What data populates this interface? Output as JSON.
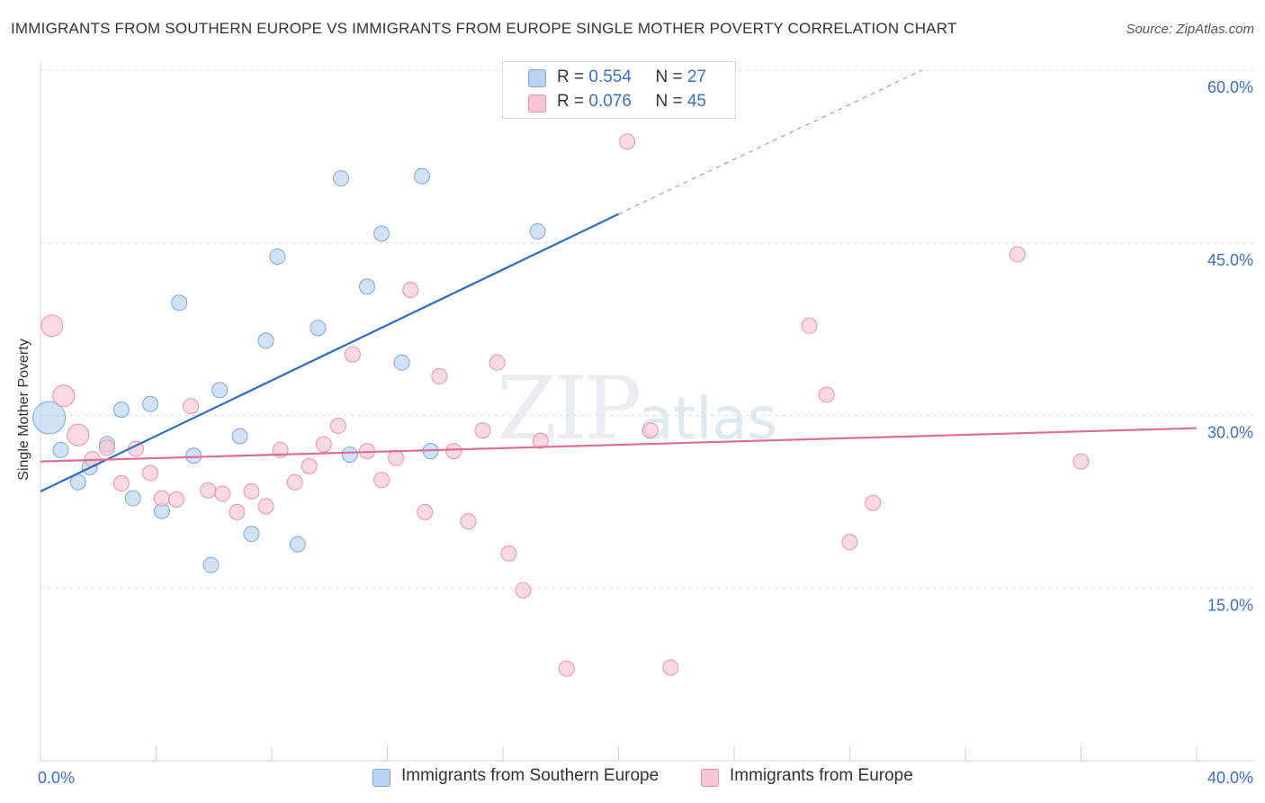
{
  "title": "IMMIGRANTS FROM SOUTHERN EUROPE VS IMMIGRANTS FROM EUROPE SINGLE MOTHER POVERTY CORRELATION CHART",
  "source": "Source: ZipAtlas.com",
  "watermark": {
    "zip": "ZIP",
    "atlas": "atlas"
  },
  "colors": {
    "blue_fill": "#b9d3f2",
    "blue_stroke": "#7aa6de",
    "blue_line": "#2d6cc8",
    "pink_fill": "#f8c5d4",
    "pink_stroke": "#ec8fab",
    "pink_line": "#e06b95",
    "tick_label": "#3b6fc4",
    "grid": "#dddddd"
  },
  "legend": {
    "rows": [
      {
        "r_label": "R = ",
        "r_value": "0.554",
        "n_label": "N = ",
        "n_value": "27"
      },
      {
        "r_label": "R = ",
        "r_value": "0.076",
        "n_label": "N = ",
        "n_value": "45"
      }
    ]
  },
  "chart_data": {
    "type": "scatter",
    "xlabel": "",
    "ylabel": "Single Mother Poverty",
    "xlim": [
      0,
      40
    ],
    "ylim": [
      0,
      60
    ],
    "y_ticks": [
      {
        "value": 15,
        "label": "15.0%"
      },
      {
        "value": 30,
        "label": "30.0%"
      },
      {
        "value": 45,
        "label": "45.0%"
      },
      {
        "value": 60,
        "label": "60.0%"
      }
    ],
    "x_tick_labels": [
      {
        "value": 0,
        "label": "0.0%"
      },
      {
        "value": 40,
        "label": "40.0%"
      }
    ],
    "x_minor_ticks": [
      0,
      4,
      8,
      12,
      16,
      20,
      24,
      28,
      32,
      36,
      40
    ],
    "series": [
      {
        "name": "Immigrants from Southern Europe",
        "color": "blue",
        "trend": {
          "x1": 0,
          "y1": 23.4,
          "x2": 20,
          "y2": 47.5,
          "dash_to_x": 30.5,
          "dash_to_y": 60.0
        },
        "points": [
          [
            0.3,
            29.8,
            3
          ],
          [
            0.7,
            27.0,
            1
          ],
          [
            1.3,
            24.2,
            1
          ],
          [
            1.7,
            25.5,
            1
          ],
          [
            2.3,
            27.5,
            1
          ],
          [
            2.8,
            30.5,
            1
          ],
          [
            3.2,
            22.8,
            1
          ],
          [
            3.8,
            31.0,
            1
          ],
          [
            4.2,
            21.7,
            1
          ],
          [
            4.8,
            39.8,
            1
          ],
          [
            5.3,
            26.5,
            1
          ],
          [
            5.9,
            17.0,
            1
          ],
          [
            6.2,
            32.2,
            1
          ],
          [
            6.9,
            28.2,
            1
          ],
          [
            7.3,
            19.7,
            1
          ],
          [
            7.8,
            36.5,
            1
          ],
          [
            8.2,
            43.8,
            1
          ],
          [
            8.9,
            18.8,
            1
          ],
          [
            9.6,
            37.6,
            1
          ],
          [
            10.4,
            50.6,
            1
          ],
          [
            10.7,
            26.6,
            1
          ],
          [
            11.3,
            41.2,
            1
          ],
          [
            11.8,
            45.8,
            1
          ],
          [
            12.5,
            34.6,
            1
          ],
          [
            13.2,
            50.8,
            1
          ],
          [
            13.5,
            26.9,
            1
          ],
          [
            17.2,
            46.0,
            1
          ]
        ]
      },
      {
        "name": "Immigrants from Europe",
        "color": "pink",
        "trend": {
          "x1": 0,
          "y1": 26.0,
          "x2": 40,
          "y2": 28.9
        },
        "points": [
          [
            0.4,
            37.8,
            2
          ],
          [
            0.8,
            31.7,
            2
          ],
          [
            1.3,
            28.3,
            2
          ],
          [
            1.8,
            26.2,
            1
          ],
          [
            2.3,
            27.2,
            1
          ],
          [
            2.8,
            24.1,
            1
          ],
          [
            3.3,
            27.1,
            1
          ],
          [
            3.8,
            25.0,
            1
          ],
          [
            4.2,
            22.8,
            1
          ],
          [
            4.7,
            22.7,
            1
          ],
          [
            5.2,
            30.8,
            1
          ],
          [
            5.8,
            23.5,
            1
          ],
          [
            6.3,
            23.2,
            1
          ],
          [
            6.8,
            21.6,
            1
          ],
          [
            7.3,
            23.4,
            1
          ],
          [
            7.8,
            22.1,
            1
          ],
          [
            8.3,
            27.0,
            1
          ],
          [
            8.8,
            24.2,
            1
          ],
          [
            9.3,
            25.6,
            1
          ],
          [
            9.8,
            27.5,
            1
          ],
          [
            10.3,
            29.1,
            1
          ],
          [
            10.8,
            35.3,
            1
          ],
          [
            11.3,
            26.9,
            1
          ],
          [
            11.8,
            24.4,
            1
          ],
          [
            12.3,
            26.3,
            1
          ],
          [
            12.8,
            40.9,
            1
          ],
          [
            13.3,
            21.6,
            1
          ],
          [
            13.8,
            33.4,
            1
          ],
          [
            14.3,
            26.9,
            1
          ],
          [
            14.8,
            20.8,
            1
          ],
          [
            15.3,
            28.7,
            1
          ],
          [
            15.8,
            34.6,
            1
          ],
          [
            16.2,
            18.0,
            1
          ],
          [
            16.7,
            14.8,
            1
          ],
          [
            17.3,
            27.8,
            1
          ],
          [
            18.2,
            8.0,
            1
          ],
          [
            20.3,
            53.8,
            1
          ],
          [
            21.1,
            28.7,
            1
          ],
          [
            21.8,
            8.1,
            1
          ],
          [
            26.6,
            37.8,
            1
          ],
          [
            27.2,
            31.8,
            1
          ],
          [
            28.0,
            19.0,
            1
          ],
          [
            28.8,
            22.4,
            1
          ],
          [
            33.8,
            44.0,
            1
          ],
          [
            36.0,
            26.0,
            1
          ]
        ]
      }
    ]
  }
}
